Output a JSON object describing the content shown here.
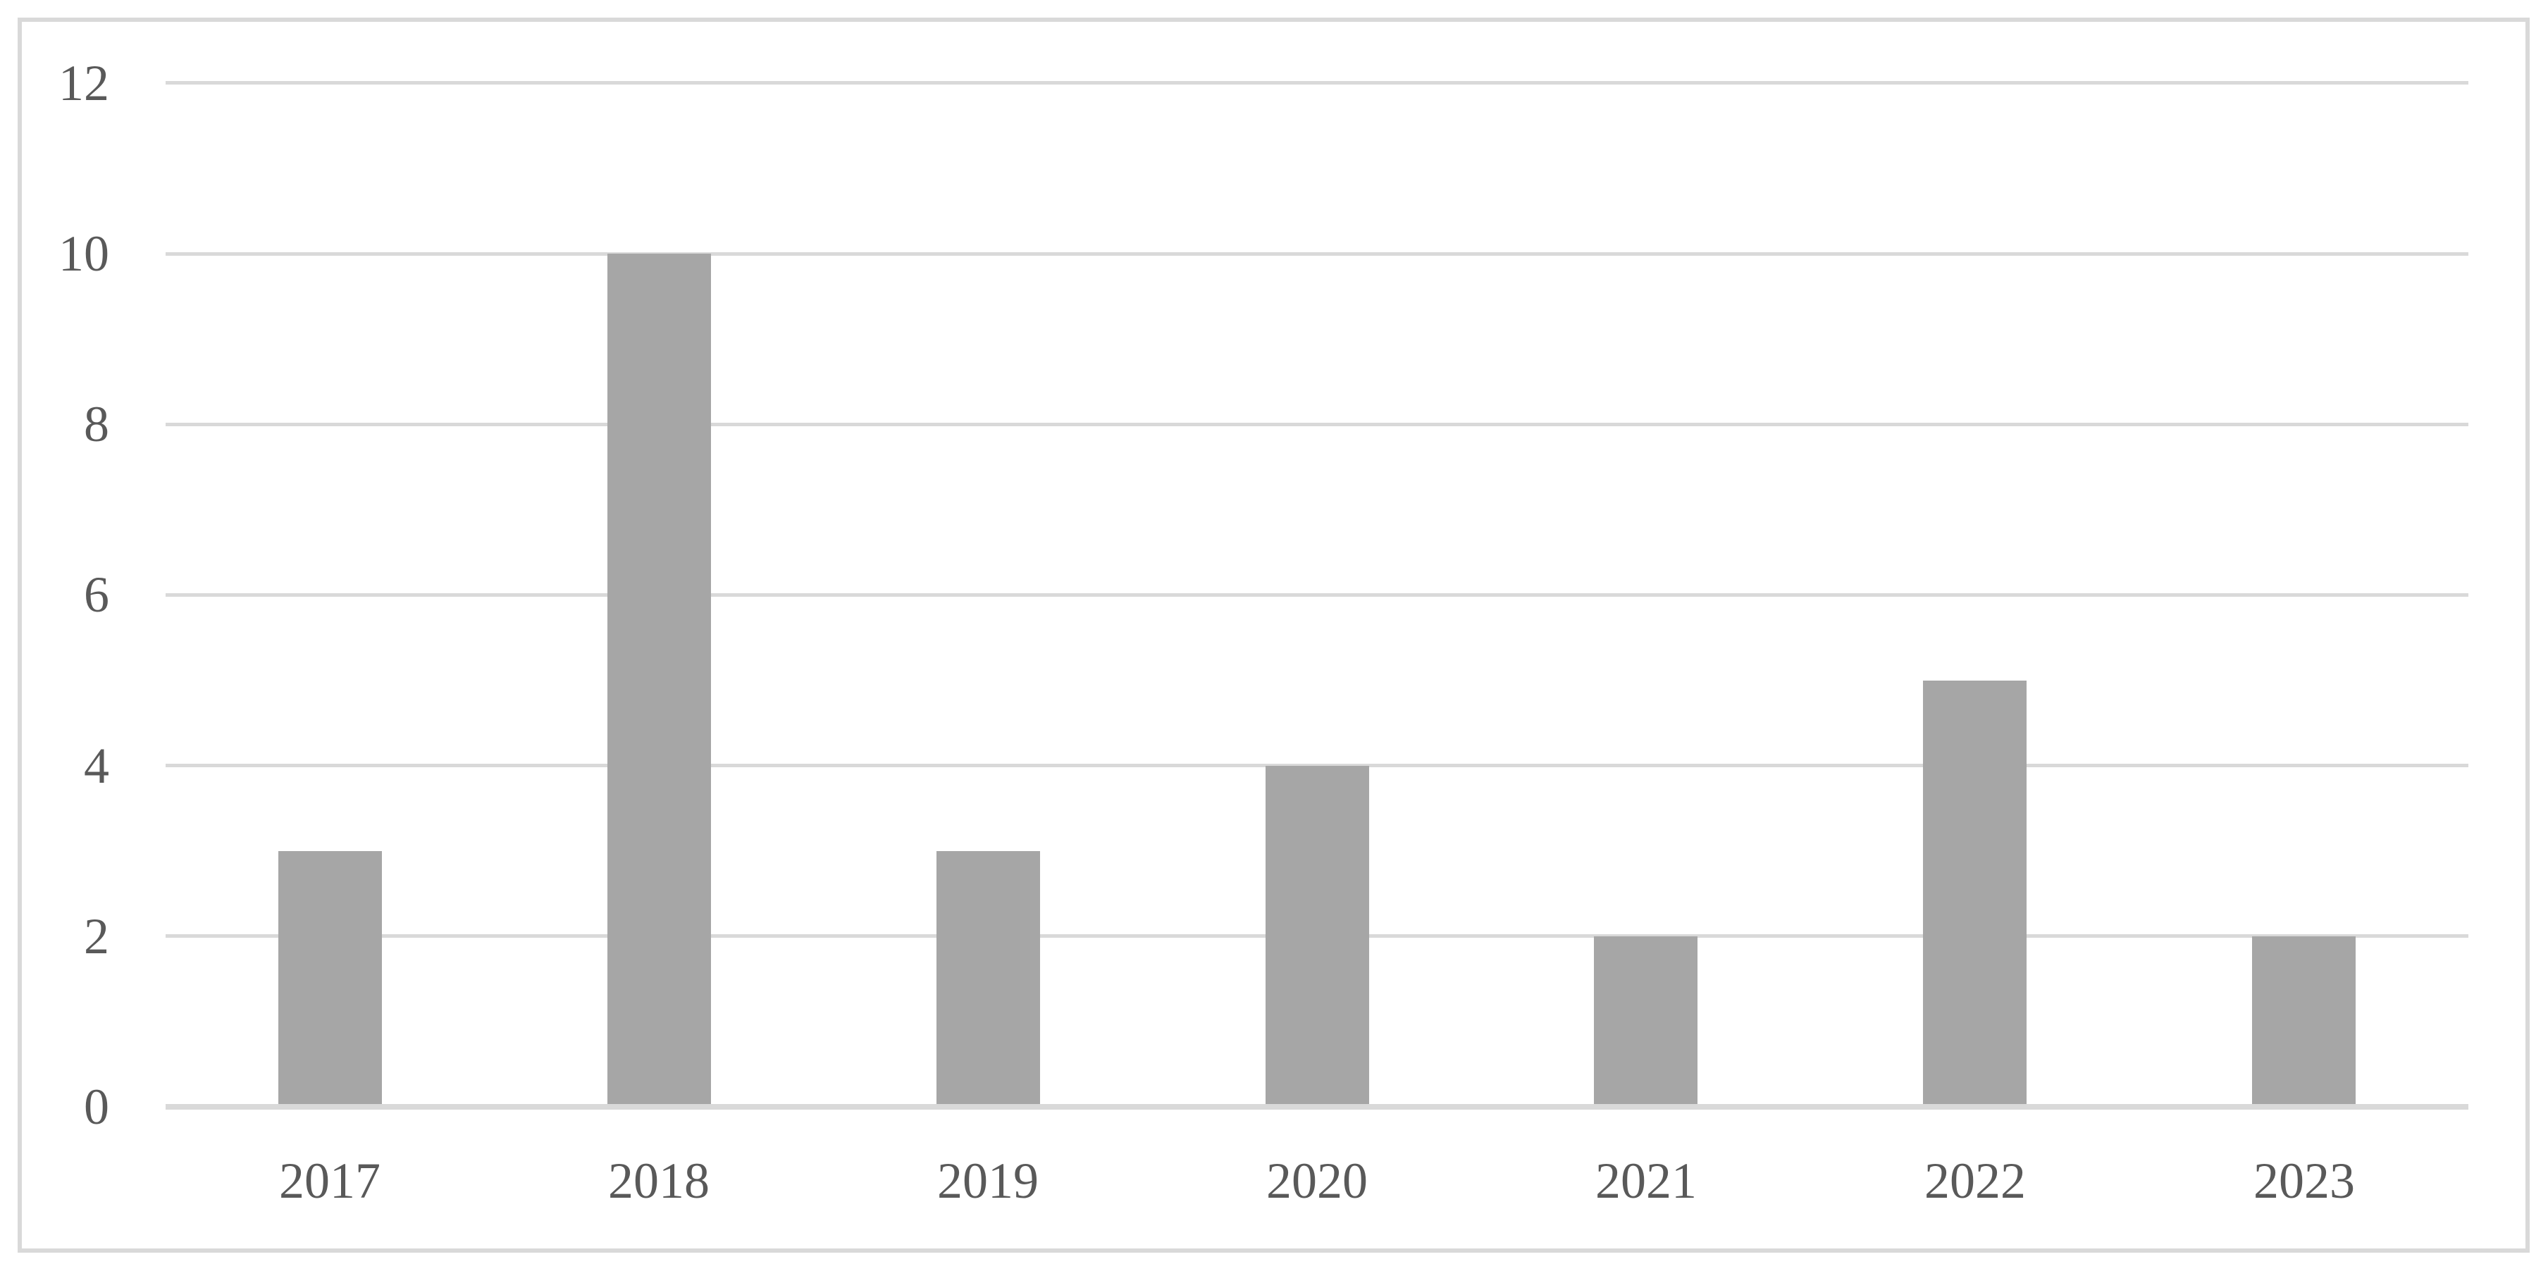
{
  "figure": {
    "background": "#ffffff",
    "frame_border_color": "#d9d9d9"
  },
  "chart_data": {
    "type": "bar",
    "title": "",
    "xlabel": "",
    "ylabel": "",
    "categories": [
      "2017",
      "2018",
      "2019",
      "2020",
      "2021",
      "2022",
      "2023"
    ],
    "values": [
      3,
      10,
      3,
      4,
      2,
      5,
      2
    ],
    "ylim": [
      0,
      12
    ],
    "yticks": [
      0,
      2,
      4,
      6,
      8,
      10,
      12
    ],
    "grid": "horizontal",
    "legend": "none",
    "bar_color": "#a6a6a6",
    "gridline_color": "#d9d9d9",
    "axis_line_color": "#d9d9d9",
    "tick_label_color": "#595959"
  }
}
